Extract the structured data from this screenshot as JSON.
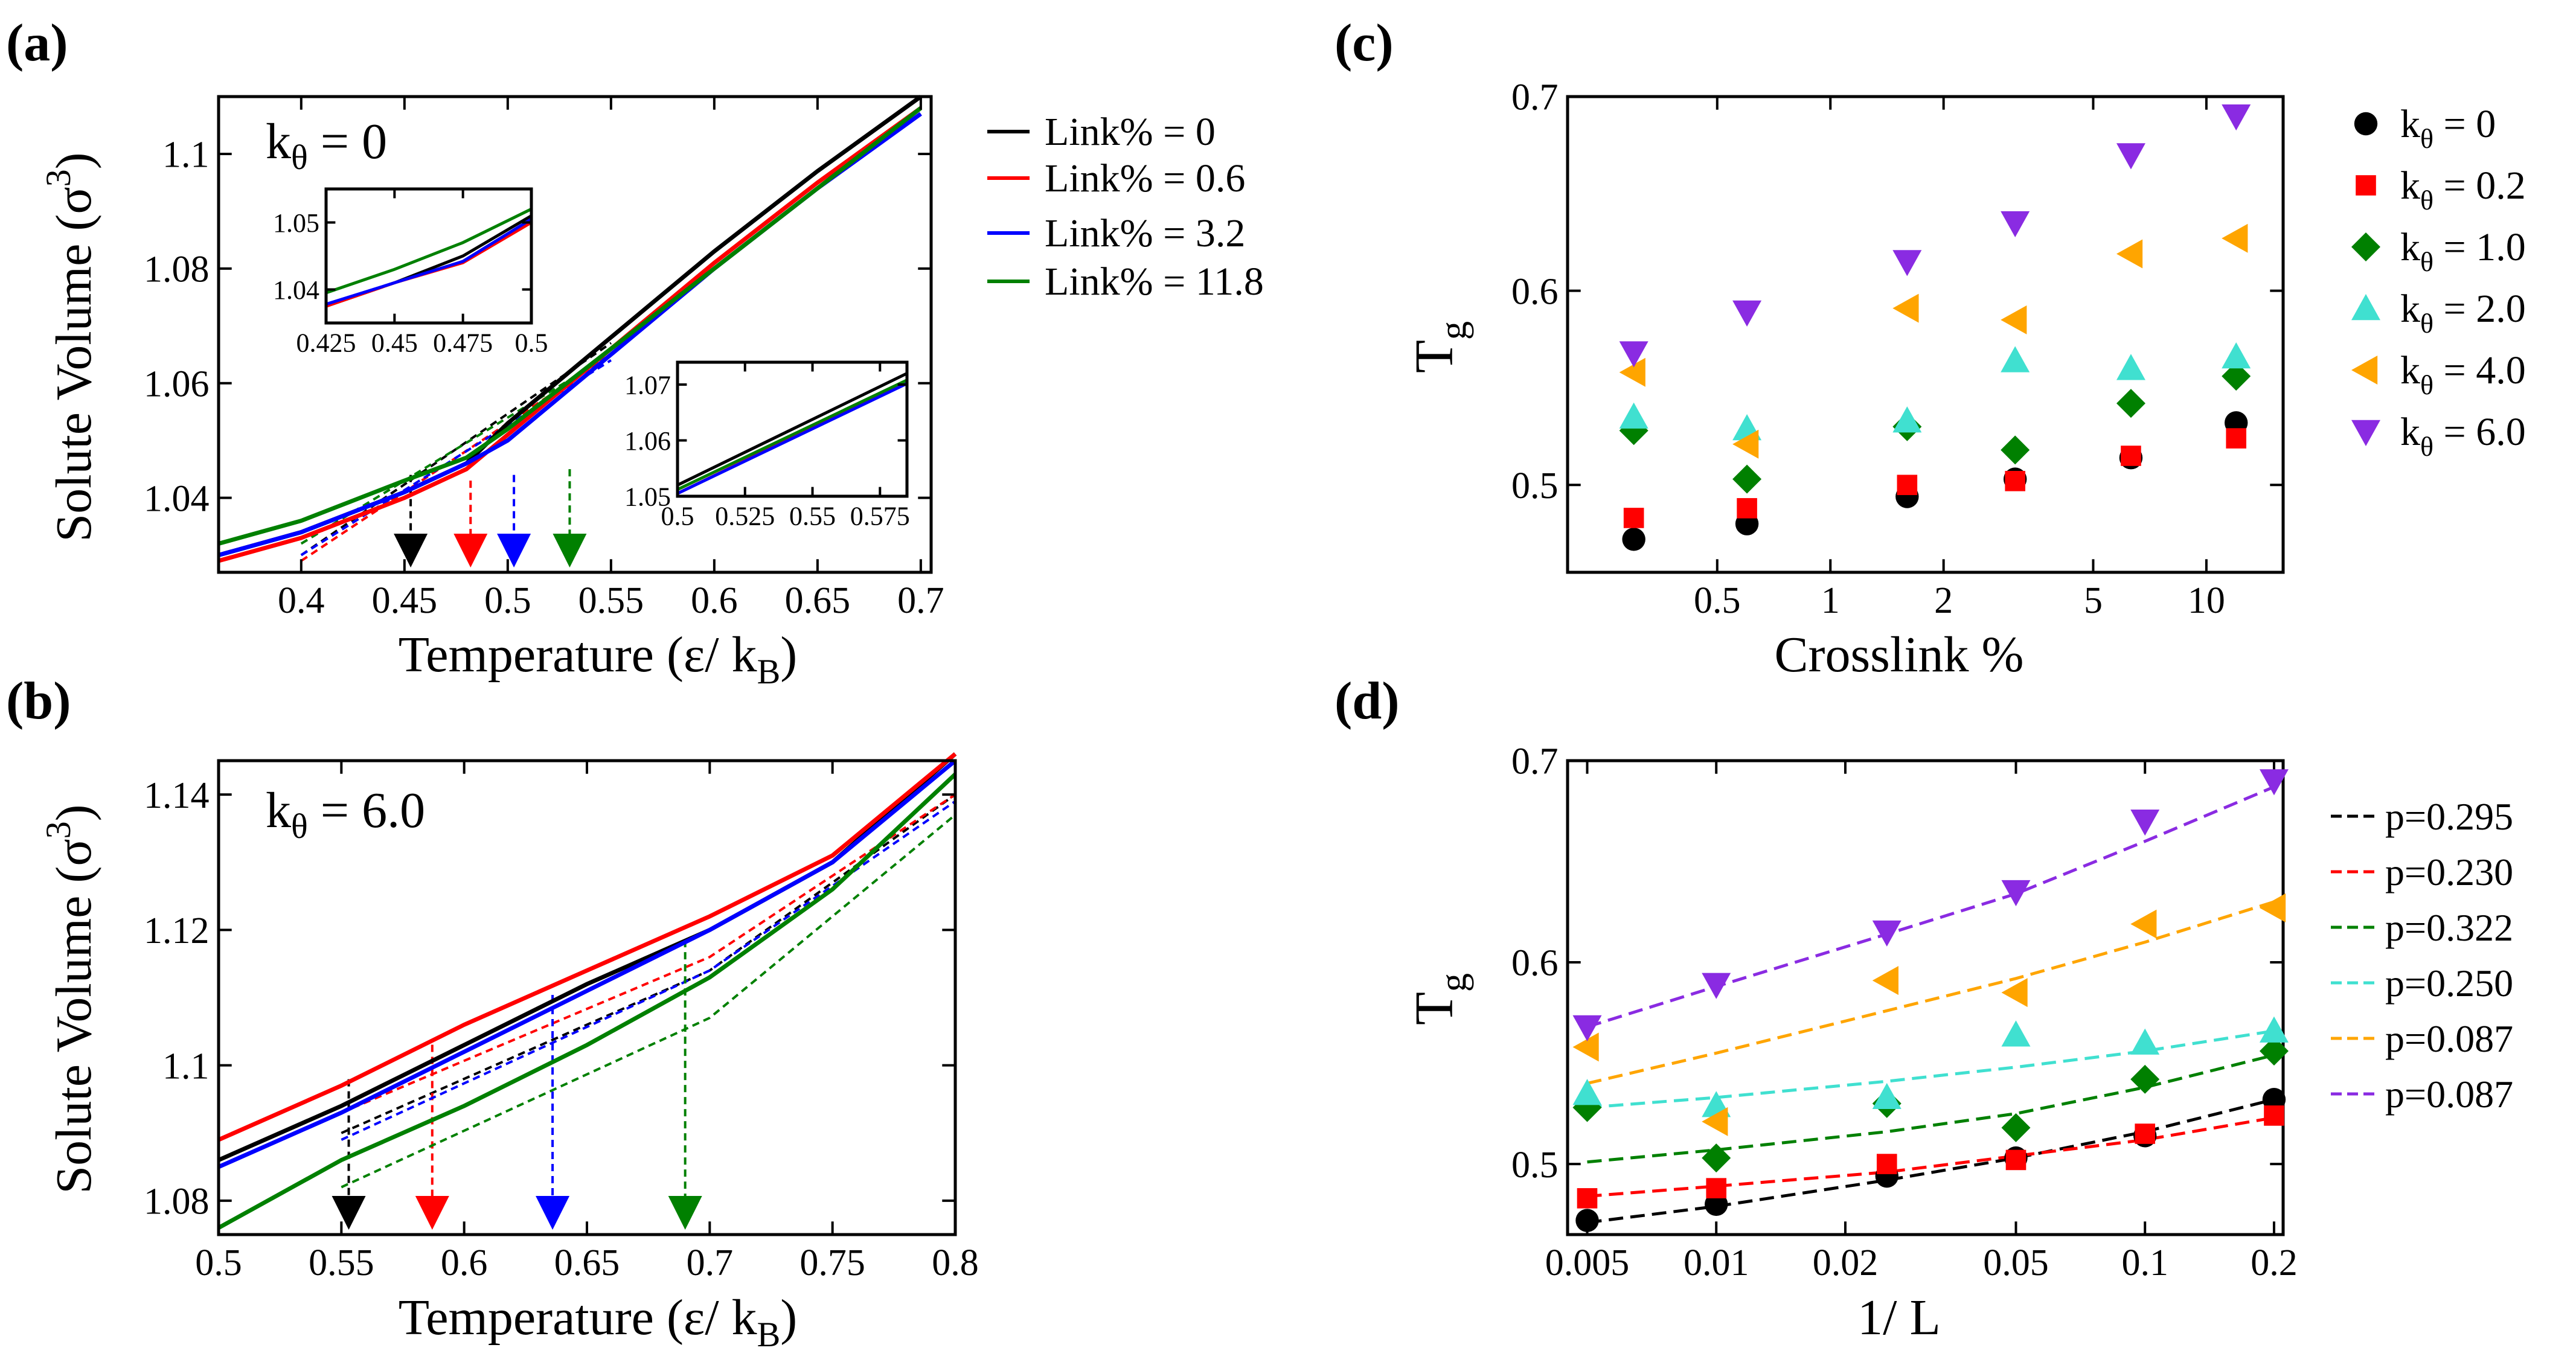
{
  "figure": {
    "panels": [
      {
        "letter": "(a)"
      },
      {
        "letter": "(b)"
      },
      {
        "letter": "(c)"
      },
      {
        "letter": "(d)"
      }
    ]
  },
  "colors": {
    "k0": "#000000",
    "k02": "#ff0000",
    "k1": "#008000",
    "k2": "#40e0d0",
    "k4": "#ffa500",
    "k6": "#8a2be2",
    "link32": "#0000ff"
  },
  "chart_data": [
    {
      "id": "a",
      "type": "line",
      "annotation_main": "k",
      "annotation_sub": "θ",
      "annotation_rest": " = 0",
      "xlabel": "Temperature (ε/ k",
      "xlabel_sub": "B",
      "xlabel_end": ")",
      "ylabel": "Solute Volume (σ",
      "ylabel_sup": "3",
      "ylabel_end": ")",
      "xlim": [
        0.36,
        0.705
      ],
      "ylim": [
        1.027,
        1.11
      ],
      "xticks": [
        0.4,
        0.45,
        0.5,
        0.55,
        0.6,
        0.65,
        0.7
      ],
      "xticklabels": [
        "0.4",
        "0.45",
        "0.5",
        "0.55",
        "0.6",
        "0.65",
        "0.7"
      ],
      "yticks": [
        1.04,
        1.06,
        1.08,
        1.1
      ],
      "yticklabels": [
        "1.04",
        "1.06",
        "1.08",
        "1.1"
      ],
      "legend": [
        "Link% = 0",
        "Link% = 0.6",
        "Link% = 3.2",
        "Link% = 11.8"
      ],
      "legend_colors": [
        "#000000",
        "#ff0000",
        "#0000ff",
        "#008000"
      ],
      "series": [
        {
          "name": "Link% = 0",
          "color": "#000000",
          "x": [
            0.36,
            0.4,
            0.45,
            0.48,
            0.5,
            0.55,
            0.6,
            0.65,
            0.7
          ],
          "y": [
            1.03,
            1.034,
            1.041,
            1.046,
            1.053,
            1.068,
            1.083,
            1.097,
            1.11
          ]
        },
        {
          "name": "Link% = 0.6",
          "color": "#ff0000",
          "x": [
            0.36,
            0.4,
            0.45,
            0.48,
            0.5,
            0.55,
            0.6,
            0.65,
            0.7
          ],
          "y": [
            1.029,
            1.033,
            1.04,
            1.045,
            1.051,
            1.066,
            1.081,
            1.095,
            1.108
          ]
        },
        {
          "name": "Link% = 3.2",
          "color": "#0000ff",
          "x": [
            0.36,
            0.4,
            0.45,
            0.48,
            0.5,
            0.55,
            0.6,
            0.65,
            0.7
          ],
          "y": [
            1.03,
            1.034,
            1.041,
            1.046,
            1.05,
            1.065,
            1.08,
            1.094,
            1.107
          ]
        },
        {
          "name": "Link% = 11.8",
          "color": "#008000",
          "x": [
            0.36,
            0.4,
            0.45,
            0.48,
            0.5,
            0.55,
            0.6,
            0.65,
            0.7
          ],
          "y": [
            1.032,
            1.036,
            1.043,
            1.047,
            1.052,
            1.066,
            1.08,
            1.094,
            1.108
          ]
        }
      ],
      "tg_arrows": [
        {
          "x": 0.453,
          "color": "#000000"
        },
        {
          "x": 0.482,
          "color": "#ff0000"
        },
        {
          "x": 0.503,
          "color": "#0000ff"
        },
        {
          "x": 0.53,
          "color": "#008000"
        }
      ],
      "inset1": {
        "xlim": [
          0.425,
          0.5
        ],
        "ylim": [
          1.035,
          1.055
        ],
        "xticks": [
          0.425,
          0.45,
          0.475,
          0.5
        ],
        "xticklabels": [
          "0.425",
          "0.45",
          "0.475",
          "0.5"
        ],
        "yticks": [
          1.04,
          1.05
        ],
        "yticklabels": [
          "1.04",
          "1.05"
        ],
        "series": [
          {
            "color": "#000000",
            "x": [
              0.425,
              0.45,
              0.475,
              0.5
            ],
            "y": [
              1.0375,
              1.041,
              1.045,
              1.051
            ]
          },
          {
            "color": "#ff0000",
            "x": [
              0.425,
              0.45,
              0.475,
              0.5
            ],
            "y": [
              1.0375,
              1.041,
              1.044,
              1.05
            ]
          },
          {
            "color": "#0000ff",
            "x": [
              0.425,
              0.45,
              0.475,
              0.5
            ],
            "y": [
              1.0378,
              1.041,
              1.0442,
              1.0505
            ]
          },
          {
            "color": "#008000",
            "x": [
              0.425,
              0.45,
              0.475,
              0.5
            ],
            "y": [
              1.0395,
              1.043,
              1.047,
              1.052
            ]
          }
        ]
      },
      "inset2": {
        "xlim": [
          0.5,
          0.585
        ],
        "ylim": [
          1.05,
          1.074
        ],
        "xticks": [
          0.5,
          0.525,
          0.55,
          0.575
        ],
        "xticklabels": [
          "0.5",
          "0.525",
          "0.55",
          "0.575"
        ],
        "yticks": [
          1.05,
          1.06,
          1.07
        ],
        "yticklabels": [
          "1.05",
          "1.06",
          "1.07"
        ],
        "series": [
          {
            "color": "#000000",
            "x": [
              0.5,
              0.585
            ],
            "y": [
              1.052,
              1.072
            ]
          },
          {
            "color": "#ff0000",
            "x": [
              0.5,
              0.585
            ],
            "y": [
              1.0505,
              1.0705
            ]
          },
          {
            "color": "#0000ff",
            "x": [
              0.5,
              0.585
            ],
            "y": [
              1.0505,
              1.0702
            ]
          },
          {
            "color": "#008000",
            "x": [
              0.5,
              0.585
            ],
            "y": [
              1.0512,
              1.0708
            ]
          }
        ]
      }
    },
    {
      "id": "b",
      "type": "line",
      "annotation_main": "k",
      "annotation_sub": "θ",
      "annotation_rest": " = 6.0",
      "xlabel": "Temperature (ε/ k",
      "xlabel_sub": "B",
      "xlabel_end": ")",
      "ylabel": "Solute Volume (σ",
      "ylabel_sup": "3",
      "ylabel_end": ")",
      "xlim": [
        0.5,
        0.8
      ],
      "ylim": [
        1.075,
        1.145
      ],
      "xticks": [
        0.5,
        0.55,
        0.6,
        0.65,
        0.7,
        0.75,
        0.8
      ],
      "xticklabels": [
        "0.5",
        "0.55",
        "0.6",
        "0.65",
        "0.7",
        "0.75",
        "0.8"
      ],
      "yticks": [
        1.08,
        1.1,
        1.12,
        1.14
      ],
      "yticklabels": [
        "1.08",
        "1.1",
        "1.12",
        "1.14"
      ],
      "series": [
        {
          "name": "Link% = 0",
          "color": "#000000",
          "x": [
            0.5,
            0.55,
            0.6,
            0.65,
            0.7,
            0.75,
            0.8
          ],
          "y": [
            1.086,
            1.094,
            1.103,
            1.112,
            1.12,
            1.13,
            1.146
          ]
        },
        {
          "name": "Link% = 0.6",
          "color": "#ff0000",
          "x": [
            0.5,
            0.55,
            0.6,
            0.65,
            0.7,
            0.75,
            0.8
          ],
          "y": [
            1.089,
            1.097,
            1.106,
            1.114,
            1.122,
            1.131,
            1.146
          ]
        },
        {
          "name": "Link% = 3.2",
          "color": "#0000ff",
          "x": [
            0.5,
            0.55,
            0.6,
            0.65,
            0.7,
            0.75,
            0.8
          ],
          "y": [
            1.085,
            1.093,
            1.102,
            1.111,
            1.12,
            1.13,
            1.145
          ]
        },
        {
          "name": "Link% = 11.8",
          "color": "#008000",
          "x": [
            0.5,
            0.55,
            0.6,
            0.65,
            0.7,
            0.75,
            0.8
          ],
          "y": [
            1.076,
            1.086,
            1.094,
            1.103,
            1.113,
            1.126,
            1.143
          ]
        }
      ],
      "tg_arrows": [
        {
          "x": 0.553,
          "color": "#000000"
        },
        {
          "x": 0.587,
          "color": "#ff0000"
        },
        {
          "x": 0.636,
          "color": "#0000ff"
        },
        {
          "x": 0.69,
          "color": "#008000"
        }
      ]
    },
    {
      "id": "c",
      "type": "scatter",
      "xscale": "log",
      "xlabel": "Crosslink %",
      "ylabel": "T",
      "ylabel_sub": "g",
      "xlim": [
        0.2,
        16
      ],
      "ylim": [
        0.455,
        0.7
      ],
      "xticks": [
        0.5,
        1,
        2,
        5,
        10
      ],
      "xticklabels": [
        "0.5",
        "1",
        "2",
        "5",
        "10"
      ],
      "yticks": [
        0.5,
        0.6,
        0.7
      ],
      "yticklabels": [
        "0.5",
        "0.6",
        "0.7"
      ],
      "x": [
        0.3,
        0.6,
        1.6,
        3.1,
        6.3,
        12
      ],
      "series": [
        {
          "name": "k",
          "sub": "θ",
          "rest": " = 0",
          "marker": "circle",
          "color": "#000000",
          "values": [
            0.472,
            0.48,
            0.494,
            0.503,
            0.514,
            0.532
          ]
        },
        {
          "name": "k",
          "sub": "θ",
          "rest": " = 0.2",
          "marker": "square",
          "color": "#ff0000",
          "values": [
            0.483,
            0.488,
            0.5,
            0.502,
            0.515,
            0.524
          ]
        },
        {
          "name": "k",
          "sub": "θ",
          "rest": " = 1.0",
          "marker": "diamond",
          "color": "#008000",
          "values": [
            0.528,
            0.503,
            0.53,
            0.518,
            0.542,
            0.556
          ]
        },
        {
          "name": "k",
          "sub": "θ",
          "rest": " = 2.0",
          "marker": "triangle-up",
          "color": "#40e0d0",
          "values": [
            0.535,
            0.529,
            0.533,
            0.564,
            0.56,
            0.566
          ]
        },
        {
          "name": "k",
          "sub": "θ",
          "rest": " = 4.0",
          "marker": "triangle-left",
          "color": "#ffa500",
          "values": [
            0.558,
            0.521,
            0.591,
            0.585,
            0.619,
            0.627
          ]
        },
        {
          "name": "k",
          "sub": "θ",
          "rest": " = 6.0",
          "marker": "triangle-down",
          "color": "#8a2be2",
          "values": [
            0.568,
            0.589,
            0.615,
            0.635,
            0.67,
            0.69
          ]
        }
      ]
    },
    {
      "id": "d",
      "type": "scatter",
      "xscale": "log",
      "xlabel": "1/ L",
      "ylabel": "T",
      "ylabel_sub": "g",
      "xlim": [
        0.0045,
        0.21
      ],
      "ylim": [
        0.465,
        0.7
      ],
      "xticks": [
        0.005,
        0.01,
        0.02,
        0.05,
        0.1,
        0.2
      ],
      "xticklabels": [
        "0.005",
        "0.01",
        "0.02",
        "0.05",
        "0.1",
        "0.2"
      ],
      "yticks": [
        0.5,
        0.6,
        0.7
      ],
      "yticklabels": [
        "0.5",
        "0.6",
        "0.7"
      ],
      "x": [
        0.005,
        0.01,
        0.025,
        0.05,
        0.1,
        0.2
      ],
      "legend": [
        "p=0.295",
        "p=0.230",
        "p=0.322",
        "p=0.250",
        "p=0.087",
        "p=0.087"
      ],
      "series": [
        {
          "p": "p=0.295",
          "marker": "circle",
          "color": "#000000",
          "values": [
            0.472,
            0.48,
            0.494,
            0.503,
            0.514,
            0.532
          ],
          "fit": [
            0.471,
            0.479,
            0.492,
            0.503,
            0.516,
            0.532
          ]
        },
        {
          "p": "p=0.230",
          "marker": "square",
          "color": "#ff0000",
          "values": [
            0.483,
            0.488,
            0.5,
            0.502,
            0.515,
            0.524
          ],
          "fit": [
            0.484,
            0.489,
            0.496,
            0.504,
            0.512,
            0.523
          ]
        },
        {
          "p": "p=0.322",
          "marker": "diamond",
          "color": "#008000",
          "values": [
            0.528,
            0.503,
            0.53,
            0.518,
            0.542,
            0.556
          ],
          "fit": [
            0.501,
            0.507,
            0.516,
            0.525,
            0.538,
            0.554
          ]
        },
        {
          "p": "p=0.250",
          "marker": "triangle-up",
          "color": "#40e0d0",
          "values": [
            0.535,
            0.529,
            0.533,
            0.564,
            0.56,
            0.566
          ],
          "fit": [
            0.528,
            0.533,
            0.541,
            0.548,
            0.556,
            0.566
          ]
        },
        {
          "p": "p=0.087",
          "marker": "triangle-left",
          "color": "#ffa500",
          "values": [
            0.558,
            0.521,
            0.591,
            0.585,
            0.619,
            0.627
          ],
          "fit": [
            0.54,
            0.555,
            0.576,
            0.592,
            0.61,
            0.63
          ]
        },
        {
          "p": "p=0.087",
          "marker": "triangle-down",
          "color": "#8a2be2",
          "values": [
            0.568,
            0.589,
            0.615,
            0.635,
            0.67,
            0.69
          ],
          "fit": [
            0.568,
            0.588,
            0.614,
            0.634,
            0.66,
            0.687
          ]
        }
      ]
    }
  ]
}
